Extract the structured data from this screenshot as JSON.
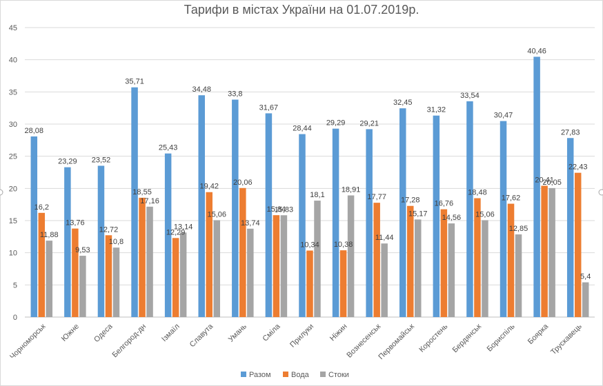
{
  "chart_data": {
    "type": "bar",
    "title": "Тарифи в містах України на 01.07.2019р.",
    "xlabel": "",
    "ylabel": "",
    "ylim": [
      0,
      45
    ],
    "yticks": [
      0,
      5,
      10,
      15,
      20,
      25,
      30,
      35,
      40,
      45
    ],
    "grid": true,
    "legend_position": "bottom",
    "categories": [
      "Чорноморськ",
      "Южне",
      "Одеса",
      "Белгород-дн",
      "Ізмаїл",
      "Славута",
      "Умань",
      "Сміла",
      "Прилуки",
      "Ніжин",
      "Вознесенськ",
      "Первомайськ",
      "Коростень",
      "Бердянськ",
      "Бориспіль",
      "Боярка",
      "Трускавець"
    ],
    "series": [
      {
        "name": "Разом",
        "color": "#5b9bd5",
        "values": [
          28.08,
          23.29,
          23.52,
          35.71,
          25.43,
          34.48,
          33.8,
          31.67,
          28.44,
          29.29,
          29.21,
          32.45,
          31.32,
          33.54,
          30.47,
          40.46,
          27.83
        ]
      },
      {
        "name": "Вода",
        "color": "#ed7d31",
        "values": [
          16.2,
          13.76,
          12.72,
          18.55,
          12.29,
          19.42,
          20.06,
          15.84,
          10.34,
          10.38,
          17.77,
          17.28,
          16.76,
          18.48,
          17.62,
          20.41,
          22.43
        ]
      },
      {
        "name": "Стоки",
        "color": "#a5a5a5",
        "values": [
          11.88,
          9.53,
          10.8,
          17.16,
          13.14,
          15.06,
          13.74,
          15.83,
          18.1,
          18.91,
          11.44,
          15.17,
          14.56,
          15.06,
          12.85,
          20.05,
          5.4
        ]
      }
    ],
    "data_labels": [
      [
        "28,08",
        "23,29",
        "23,52",
        "35,71",
        "25,43",
        "34,48",
        "33,8",
        "31,67",
        "28,44",
        "29,29",
        "29,21",
        "32,45",
        "31,32",
        "33,54",
        "30,47",
        "40,46",
        "27,83"
      ],
      [
        "16,2",
        "13,76",
        "12,72",
        "18,55",
        "12,29",
        "19,42",
        "20,06",
        "15,84",
        "10,34",
        "10,38",
        "17,77",
        "17,28",
        "16,76",
        "18,48",
        "17,62",
        "20,41",
        "22,43"
      ],
      [
        "11,88",
        "9,53",
        "10,8",
        "17,16",
        "13,14",
        "15,06",
        "13,74",
        "15,83",
        "18,1",
        "18,91",
        "11,44",
        "15,17",
        "14,56",
        "15,06",
        "12,85",
        "20,05",
        "5,4"
      ]
    ]
  }
}
